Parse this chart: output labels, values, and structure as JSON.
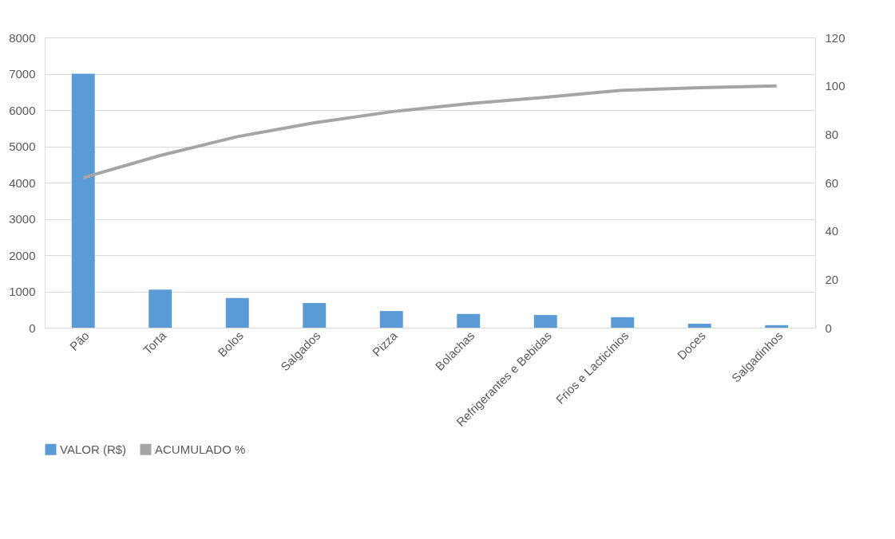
{
  "chart_data": {
    "type": "bar",
    "categories": [
      "Pão",
      "Torta",
      "Bolos",
      "Salgados",
      "Pizza",
      "Bolachas",
      "Refrigerantes e Bebidas",
      "Frios e Lacticínios",
      "Doces",
      "Salgadinhos"
    ],
    "series": [
      {
        "name": "VALOR (R$)",
        "color": "#5b9bd5",
        "values": [
          7000,
          1050,
          820,
          680,
          460,
          380,
          350,
          290,
          110,
          70
        ]
      },
      {
        "name": "ACUMULADO %",
        "color": "#a5a5a5",
        "type": "line",
        "axis": "y2",
        "values": [
          62,
          71.2,
          79,
          84.7,
          89.3,
          92.6,
          95.3,
          98.2,
          99.2,
          100
        ]
      }
    ],
    "ylim": [
      0,
      8000
    ],
    "yticks": [
      0,
      1000,
      2000,
      3000,
      4000,
      5000,
      6000,
      7000,
      8000
    ],
    "y2lim": [
      0,
      120
    ],
    "y2ticks": [
      0,
      20,
      40,
      60,
      80,
      100,
      120
    ],
    "grid": "y",
    "legend": "bottom",
    "marker": "none",
    "line_style": "solid"
  }
}
